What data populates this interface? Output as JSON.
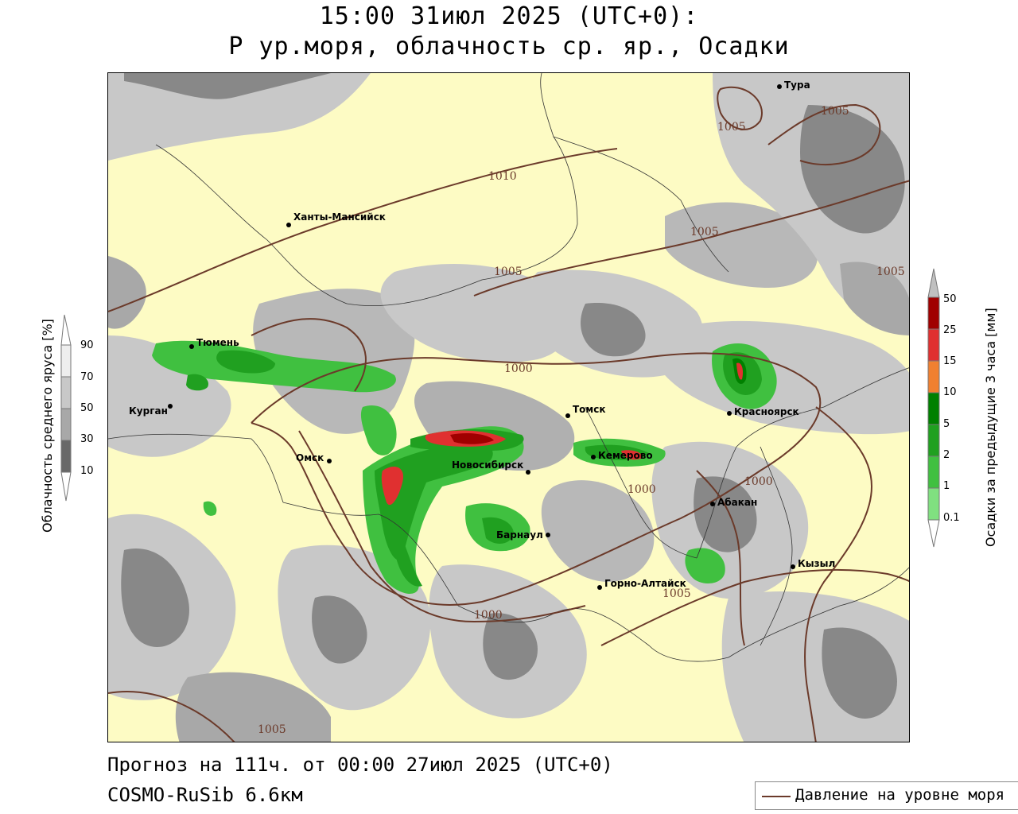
{
  "title": {
    "line1": "15:00 31июл 2025 (UTC+0):",
    "line2": "P ур.моря, облачность ср. яр., Осадки"
  },
  "footer": {
    "forecast": "Прогноз на 111ч. от 00:00 27июл 2025 (UTC+0)",
    "model": "COSMO-RuSib 6.6км"
  },
  "legend": {
    "pressure_label": "Давление на уровне моря",
    "pressure_color": "#6b3a2a"
  },
  "cloud_scale": {
    "label": "Облачность среднего яруса [%]",
    "ticks": [
      "90",
      "70",
      "50",
      "30",
      "10"
    ],
    "colors": [
      "#eeeeee",
      "#c8c8c8",
      "#a8a8a8",
      "#888888",
      "#686868"
    ]
  },
  "precip_scale": {
    "label": "Осадки за предыдущие 3 часа [мм]",
    "ticks": [
      "50",
      "25",
      "15",
      "10",
      "5",
      "2",
      "1",
      "0.1"
    ],
    "colors": [
      "#a00000",
      "#e03030",
      "#f08030",
      "#008000",
      "#20a020",
      "#40c040",
      "#80e080"
    ]
  },
  "cities": [
    {
      "name": "Тура"
    },
    {
      "name": "Ханты-Мансийск"
    },
    {
      "name": "Тюмень"
    },
    {
      "name": "Курган"
    },
    {
      "name": "Омск"
    },
    {
      "name": "Томск"
    },
    {
      "name": "Новосибирск"
    },
    {
      "name": "Кемерово"
    },
    {
      "name": "Красноярск"
    },
    {
      "name": "Абакан"
    },
    {
      "name": "Барнаул"
    },
    {
      "name": "Горно-Алтайск"
    },
    {
      "name": "Кызыл"
    }
  ],
  "isobar_labels": [
    "1005",
    "1005",
    "1010",
    "1005",
    "1005",
    "1005",
    "1000",
    "1000",
    "1000",
    "1000",
    "1005",
    "1005"
  ]
}
